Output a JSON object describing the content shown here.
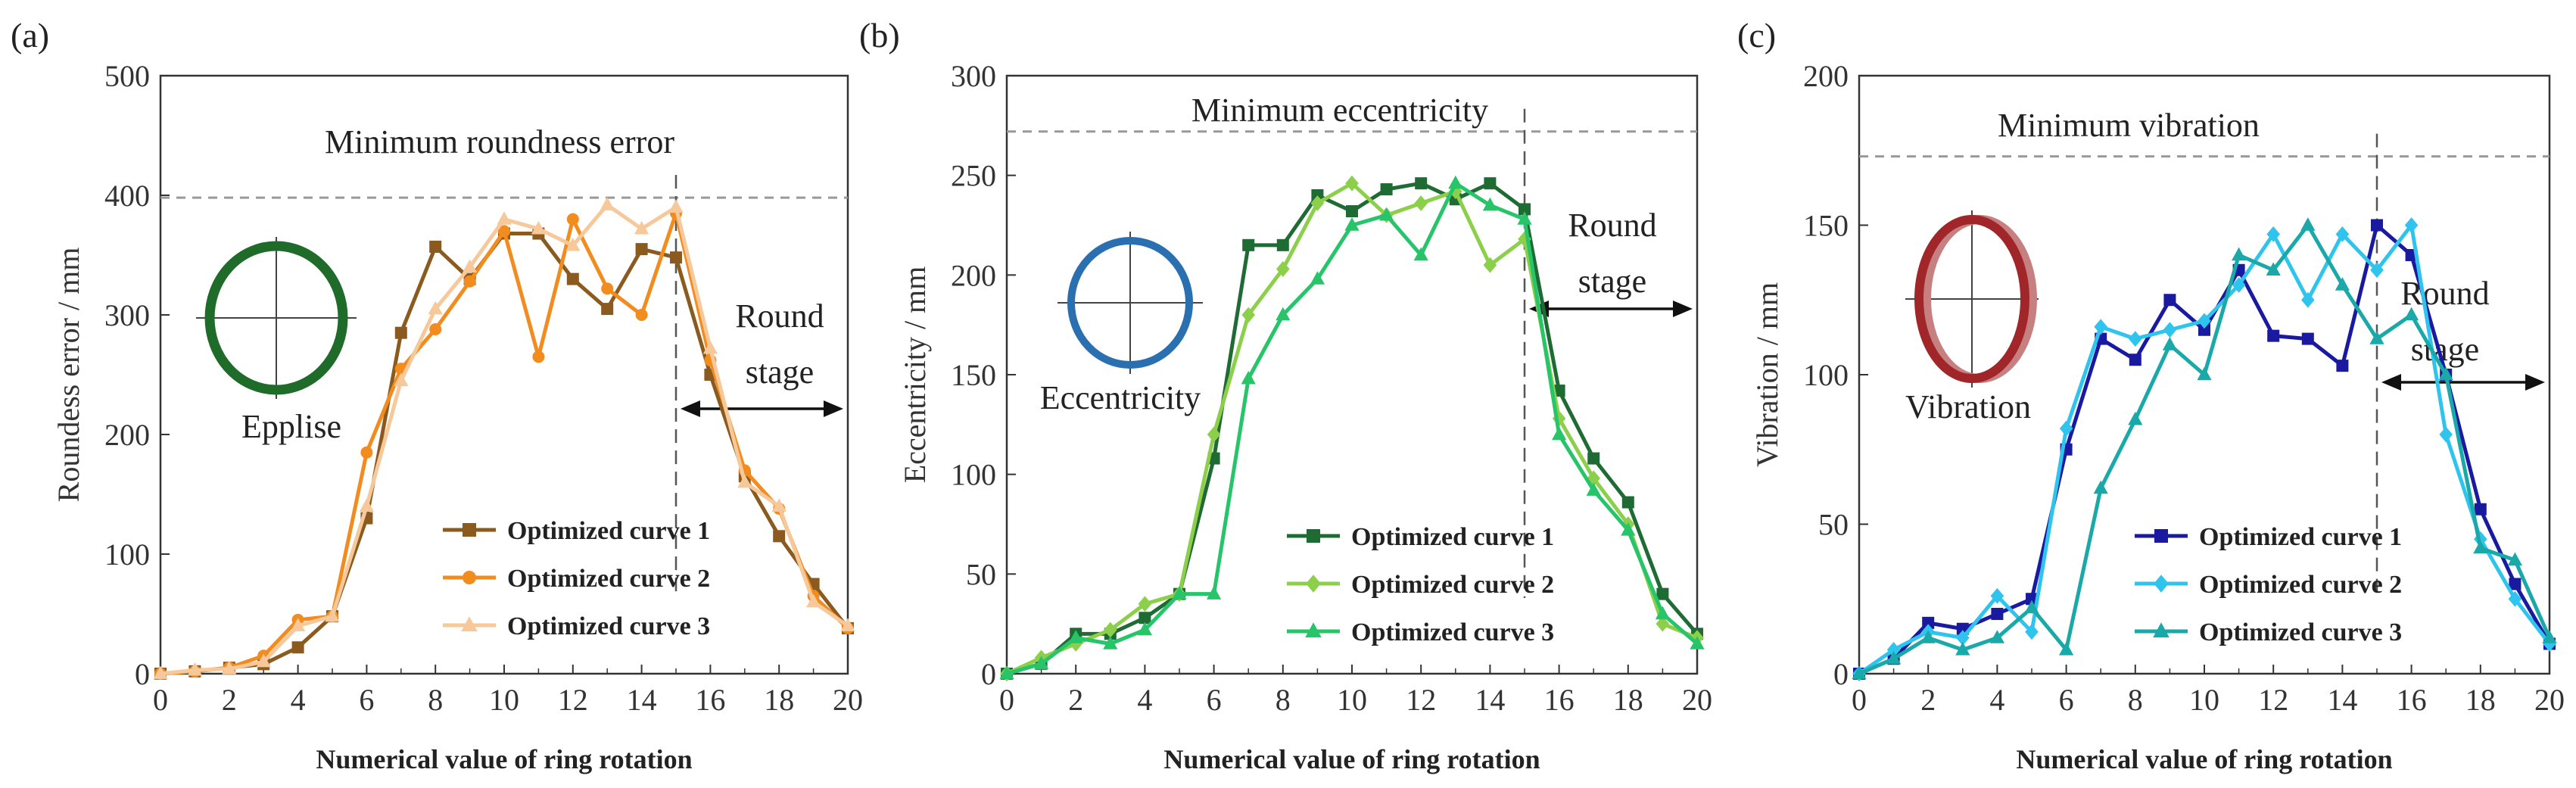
{
  "chart_data": [
    {
      "panel_label": "(a)",
      "type": "line",
      "xlabel": "Numerical value of ring rotation",
      "ylabel": "Roundess error / mm",
      "xlim": [
        0,
        20
      ],
      "ylim": [
        0,
        500
      ],
      "xticks": [
        "0",
        "2",
        "4",
        "6",
        "8",
        "10",
        "12",
        "14",
        "16",
        "18",
        "20"
      ],
      "yticks": [
        "0",
        "100",
        "200",
        "300",
        "400",
        "500"
      ],
      "reference_line": {
        "label": "Minimum roundness error",
        "value": 398
      },
      "stage_divider": 15,
      "stage_label": "Round stage",
      "stage_label_lines": [
        "Round",
        "stage"
      ],
      "inset_label": "Epplise",
      "inset_color": "#1f6b2a",
      "legend_position": "bottom-right",
      "series": [
        {
          "name": "Optimized curve 1",
          "color": "#8b5a1e",
          "marker": "square",
          "x": [
            0,
            1,
            2,
            3,
            4,
            5,
            6,
            7,
            8,
            9,
            10,
            11,
            12,
            13,
            14,
            15,
            16,
            17,
            18,
            19,
            20
          ],
          "y": [
            0,
            2,
            5,
            8,
            22,
            48,
            130,
            285,
            357,
            330,
            368,
            368,
            330,
            305,
            355,
            348,
            250,
            165,
            115,
            75,
            38
          ]
        },
        {
          "name": "Optimized curve 2",
          "color": "#f28c1f",
          "marker": "circle",
          "x": [
            0,
            1,
            2,
            3,
            4,
            5,
            6,
            7,
            8,
            9,
            10,
            11,
            12,
            13,
            14,
            15,
            16,
            17,
            18,
            19,
            20
          ],
          "y": [
            0,
            2,
            5,
            15,
            45,
            48,
            185,
            255,
            288,
            328,
            370,
            265,
            380,
            322,
            300,
            385,
            262,
            170,
            138,
            65,
            38
          ]
        },
        {
          "name": "Optimized curve 3",
          "color": "#f7c89a",
          "marker": "triangle",
          "x": [
            0,
            1,
            2,
            3,
            4,
            5,
            6,
            7,
            8,
            9,
            10,
            11,
            12,
            13,
            14,
            15,
            16,
            17,
            18,
            19,
            20
          ],
          "y": [
            0,
            3,
            4,
            10,
            40,
            48,
            140,
            245,
            305,
            340,
            380,
            372,
            358,
            392,
            372,
            390,
            272,
            160,
            140,
            60,
            40
          ]
        }
      ]
    },
    {
      "panel_label": "(b)",
      "type": "line",
      "xlabel": "Numerical value of ring rotation",
      "ylabel": "Eccentricity / mm",
      "xlim": [
        0,
        20
      ],
      "ylim": [
        0,
        300
      ],
      "xticks": [
        "0",
        "2",
        "4",
        "6",
        "8",
        "10",
        "12",
        "14",
        "16",
        "18",
        "20"
      ],
      "yticks": [
        "0",
        "50",
        "100",
        "150",
        "200",
        "250",
        "300"
      ],
      "reference_line": {
        "label": "Minimum eccentricity",
        "value": 272
      },
      "stage_divider": 15,
      "stage_label": "Round stage",
      "stage_label_lines": [
        "Round",
        "stage"
      ],
      "inset_label": "Eccentricity",
      "inset_color": "#2a6fb0",
      "legend_position": "bottom-right",
      "series": [
        {
          "name": "Optimized curve 1",
          "color": "#1f6b34",
          "marker": "square",
          "x": [
            0,
            1,
            2,
            3,
            4,
            5,
            6,
            7,
            8,
            9,
            10,
            11,
            12,
            13,
            14,
            15,
            16,
            17,
            18,
            19,
            20
          ],
          "y": [
            0,
            5,
            20,
            20,
            28,
            40,
            108,
            215,
            215,
            240,
            232,
            243,
            246,
            238,
            246,
            233,
            142,
            108,
            86,
            40,
            20
          ]
        },
        {
          "name": "Optimized curve 2",
          "color": "#8ccf4a",
          "marker": "diamond",
          "x": [
            0,
            1,
            2,
            3,
            4,
            5,
            6,
            7,
            8,
            9,
            10,
            11,
            12,
            13,
            14,
            15,
            16,
            17,
            18,
            19,
            20
          ],
          "y": [
            0,
            8,
            15,
            22,
            35,
            40,
            120,
            180,
            203,
            236,
            246,
            230,
            236,
            242,
            205,
            218,
            128,
            98,
            75,
            25,
            18
          ]
        },
        {
          "name": "Optimized curve 3",
          "color": "#27c46a",
          "marker": "triangle",
          "x": [
            0,
            1,
            2,
            3,
            4,
            5,
            6,
            7,
            8,
            9,
            10,
            11,
            12,
            13,
            14,
            15,
            16,
            17,
            18,
            19,
            20
          ],
          "y": [
            0,
            5,
            18,
            15,
            22,
            40,
            40,
            148,
            180,
            198,
            225,
            230,
            210,
            246,
            235,
            228,
            120,
            92,
            72,
            30,
            15
          ]
        }
      ]
    },
    {
      "panel_label": "(c)",
      "type": "line",
      "xlabel": "Numerical value of ring rotation",
      "ylabel": "Vibration / mm",
      "xlim": [
        0,
        20
      ],
      "ylim": [
        0,
        200
      ],
      "xticks": [
        "0",
        "2",
        "4",
        "6",
        "8",
        "10",
        "12",
        "14",
        "16",
        "18",
        "20"
      ],
      "yticks": [
        "0",
        "50",
        "100",
        "150",
        "200"
      ],
      "reference_line": {
        "label": "Minimum vibration",
        "value": 173
      },
      "stage_divider": 15,
      "stage_label": "Round stage",
      "stage_label_lines": [
        "Round",
        "stage"
      ],
      "inset_label": "Vibration",
      "inset_color": "#a0262a",
      "legend_position": "bottom-right",
      "series": [
        {
          "name": "Optimized curve 1",
          "color": "#1a1aa0",
          "marker": "square",
          "x": [
            0,
            1,
            2,
            3,
            4,
            5,
            6,
            7,
            8,
            9,
            10,
            11,
            12,
            13,
            14,
            15,
            16,
            17,
            18,
            19,
            20
          ],
          "y": [
            0,
            5,
            17,
            15,
            20,
            25,
            75,
            112,
            105,
            125,
            115,
            135,
            113,
            112,
            103,
            150,
            140,
            100,
            55,
            30,
            10
          ]
        },
        {
          "name": "Optimized curve 2",
          "color": "#2ec4ee",
          "marker": "diamond",
          "x": [
            0,
            1,
            2,
            3,
            4,
            5,
            6,
            7,
            8,
            9,
            10,
            11,
            12,
            13,
            14,
            15,
            16,
            17,
            18,
            19,
            20
          ],
          "y": [
            0,
            8,
            14,
            12,
            26,
            14,
            82,
            116,
            112,
            115,
            118,
            130,
            147,
            125,
            147,
            135,
            150,
            80,
            45,
            25,
            10
          ]
        },
        {
          "name": "Optimized curve 3",
          "color": "#1aa8a8",
          "marker": "triangle",
          "x": [
            0,
            1,
            2,
            3,
            4,
            5,
            6,
            7,
            8,
            9,
            10,
            11,
            12,
            13,
            14,
            15,
            16,
            17,
            18,
            19,
            20
          ],
          "y": [
            0,
            5,
            12,
            8,
            12,
            22,
            8,
            62,
            85,
            110,
            100,
            140,
            135,
            150,
            130,
            112,
            120,
            100,
            42,
            38,
            12
          ]
        }
      ]
    }
  ]
}
